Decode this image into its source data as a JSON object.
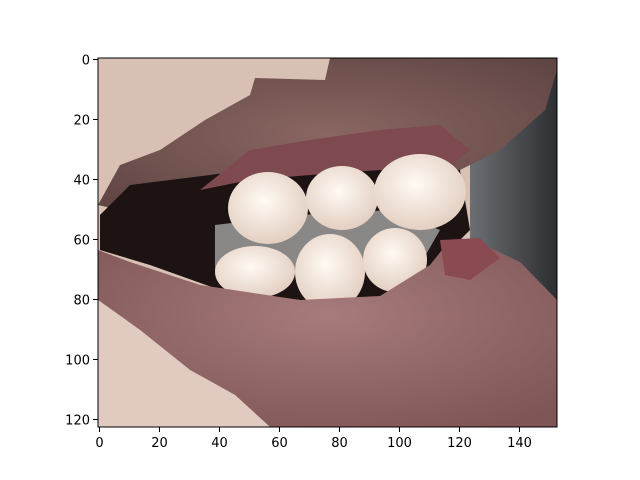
{
  "figure": {
    "description_free": true
  },
  "axes": {
    "x_ticks": [
      0,
      20,
      40,
      60,
      80,
      100,
      120,
      140
    ],
    "y_ticks": [
      0,
      20,
      40,
      60,
      80,
      100,
      120
    ],
    "xlim": [
      -0.5,
      152.5
    ],
    "ylim": [
      122.5,
      -0.5
    ]
  },
  "colors": {
    "skin": "#d9c2b6",
    "lip_upper": "#7a5a57",
    "lip_lower": "#9b6e6f",
    "mouth_dark": "#1a1110",
    "gum": "#8a4f55",
    "teeth": "#f1e6dd",
    "background_right": "#3a3b3e"
  }
}
